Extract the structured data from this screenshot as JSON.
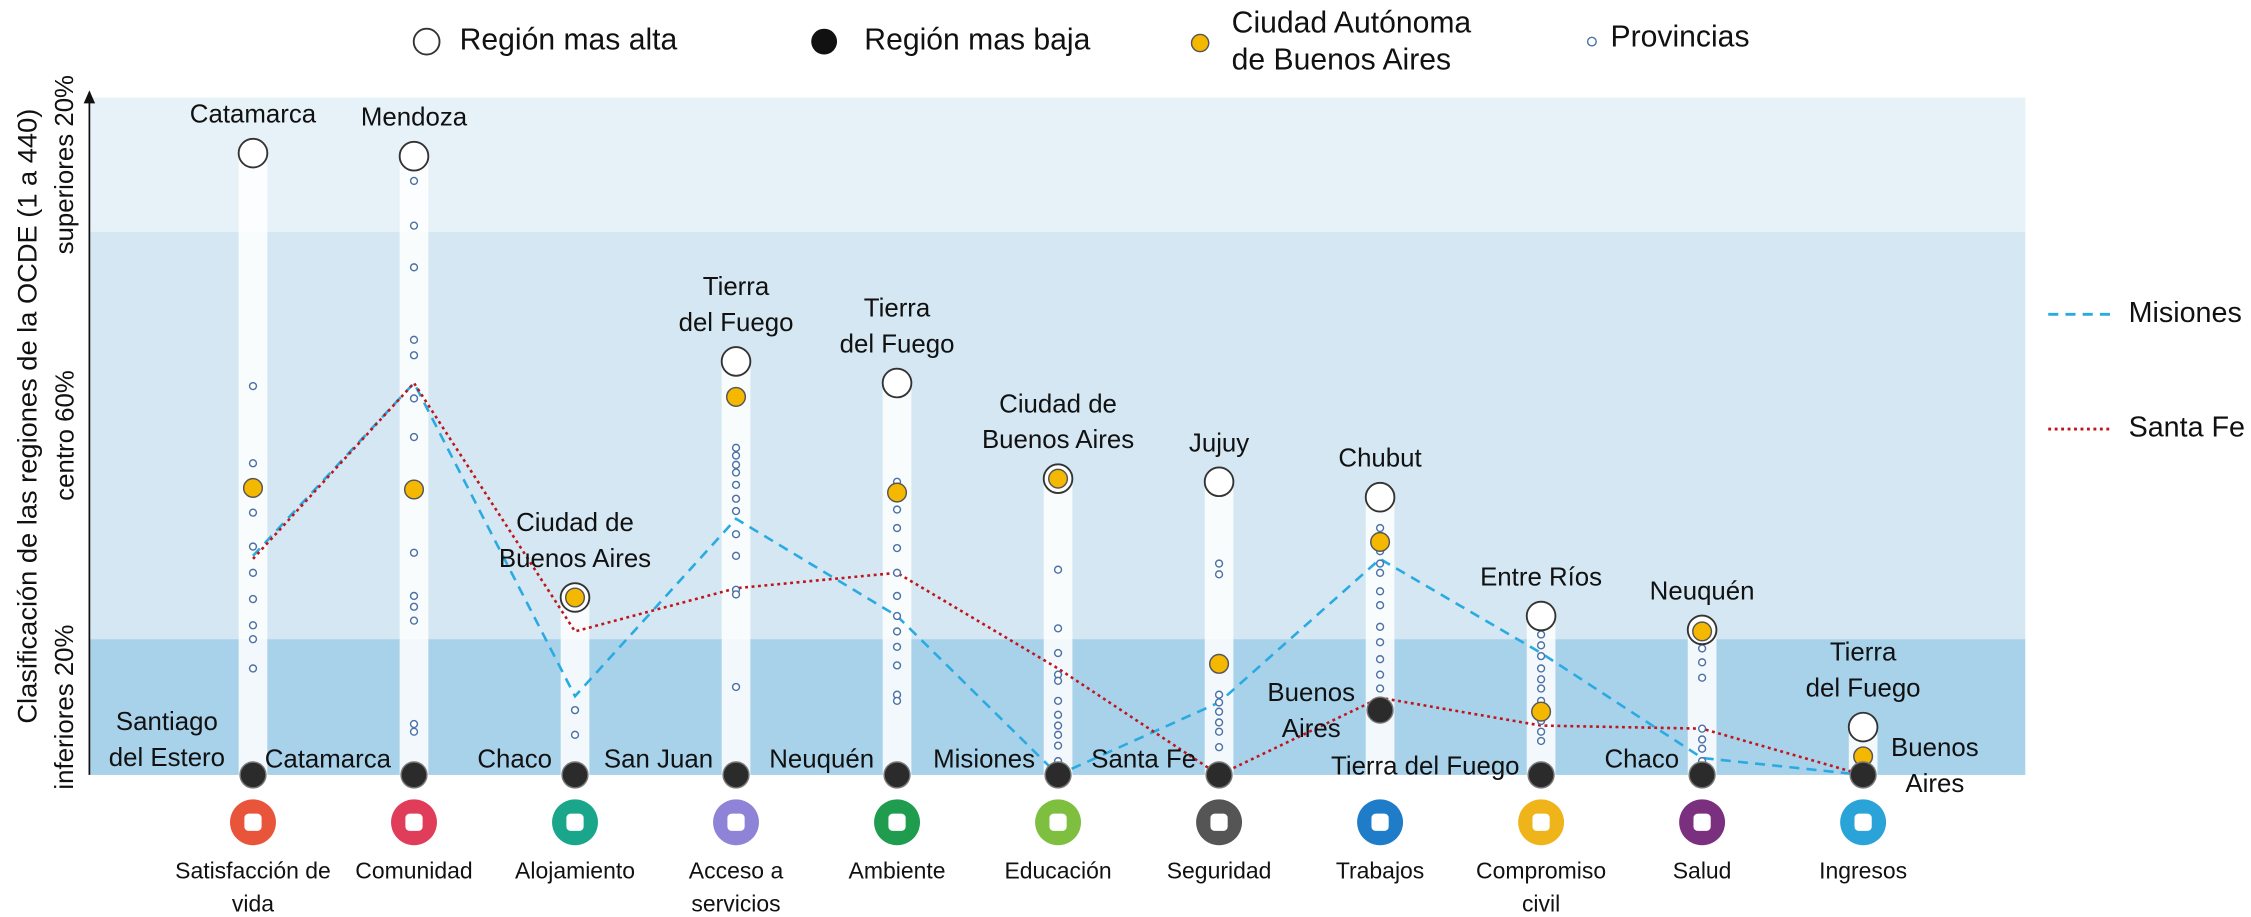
{
  "chart_data": {
    "type": "dot_range",
    "ylabel": "Clasificación de las regiones de la OCDE (1 a 440)",
    "ylim": [
      440,
      1
    ],
    "bands": [
      {
        "label": "superiores 20%",
        "from": 1,
        "to": 88,
        "color": "#e6f1f8"
      },
      {
        "label": "centro 60%",
        "from": 88,
        "to": 352,
        "color": "#d4e7f2"
      },
      {
        "label": "inferiores 20%",
        "from": 352,
        "to": 440,
        "color": "#a8d1ea"
      }
    ],
    "legend": [
      [
        "Región mas alta"
      ],
      [
        "Región mas baja"
      ],
      [
        "Ciudad Autónoma",
        "de Buenos Aires"
      ],
      [
        "Provincias"
      ]
    ],
    "categories": [
      [
        "Satisfacción de",
        "vida"
      ],
      [
        "Comunidad"
      ],
      [
        "Alojamiento"
      ],
      [
        "Acceso a",
        "servicios"
      ],
      [
        "Ambiente"
      ],
      [
        "Educación"
      ],
      [
        "Seguridad"
      ],
      [
        "Trabajos"
      ],
      [
        "Compromiso",
        "civil"
      ],
      [
        "Salud"
      ],
      [
        "Ingresos"
      ]
    ],
    "high": {
      "names": [
        [
          "Catamarca"
        ],
        [
          "Mendoza"
        ],
        [
          "Ciudad de",
          "Buenos Aires"
        ],
        [
          "Tierra",
          "del Fuego"
        ],
        [
          "Tierra",
          "del Fuego"
        ],
        [
          "Ciudad de",
          "Buenos Aires"
        ],
        [
          "Jujuy"
        ],
        [
          "Chubut"
        ],
        [
          "Entre Ríos"
        ],
        [
          "Neuquén"
        ],
        [
          "Tierra",
          "del Fuego"
        ]
      ],
      "values": [
        37,
        39,
        325,
        172,
        186,
        248,
        250,
        260,
        337,
        346,
        409
      ]
    },
    "low": {
      "names": [
        [
          "Santiago",
          "del Estero"
        ],
        [
          "Catamarca"
        ],
        [
          "Chaco"
        ],
        [
          "San Juan"
        ],
        [
          "Neuquén"
        ],
        [
          "Misiones"
        ],
        [
          "Santa Fe"
        ],
        [
          "Buenos",
          "Aires"
        ],
        [
          "Tierra del Fuego"
        ],
        [
          "Chaco"
        ],
        [
          "Buenos",
          "Aires"
        ]
      ],
      "values": [
        440,
        440,
        440,
        440,
        440,
        440,
        440,
        398,
        440,
        440,
        440
      ]
    },
    "caba": [
      254,
      255,
      325,
      195,
      257,
      248,
      368,
      289,
      399,
      347,
      428
    ],
    "provinces": [
      [
        188,
        238,
        270,
        292,
        309,
        326,
        343,
        352,
        371
      ],
      [
        55,
        84,
        111,
        158,
        168,
        196,
        221,
        256,
        296,
        324,
        331,
        340,
        407,
        412
      ],
      [
        398,
        414
      ],
      [
        228,
        233,
        239,
        244,
        252,
        261,
        269,
        284,
        298,
        320,
        323,
        383
      ],
      [
        250,
        268,
        280,
        293,
        309,
        324,
        337,
        347,
        357,
        369,
        388,
        392
      ],
      [
        307,
        345,
        361,
        375,
        379,
        392,
        401,
        408,
        414,
        421,
        431
      ],
      [
        303,
        310,
        388,
        393,
        399,
        406,
        412,
        422
      ],
      [
        280,
        295,
        303,
        309,
        321,
        330,
        344,
        354,
        365,
        375,
        384
      ],
      [
        349,
        356,
        363,
        371,
        378,
        384,
        392,
        405,
        412,
        418
      ],
      [
        358,
        367,
        377,
        410,
        417,
        423,
        431
      ],
      []
    ],
    "series": [
      {
        "name": "Misiones",
        "color": "#29abe2",
        "style": "dashed",
        "values": [
          298,
          186,
          389,
          274,
          337,
          440,
          393,
          300,
          361,
          429,
          440
        ]
      },
      {
        "name": "Santa Fe",
        "color": "#c0151b",
        "style": "dotted",
        "values": [
          300,
          186,
          347,
          319,
          309,
          371,
          440,
          390,
          408,
          410,
          440
        ]
      }
    ]
  }
}
